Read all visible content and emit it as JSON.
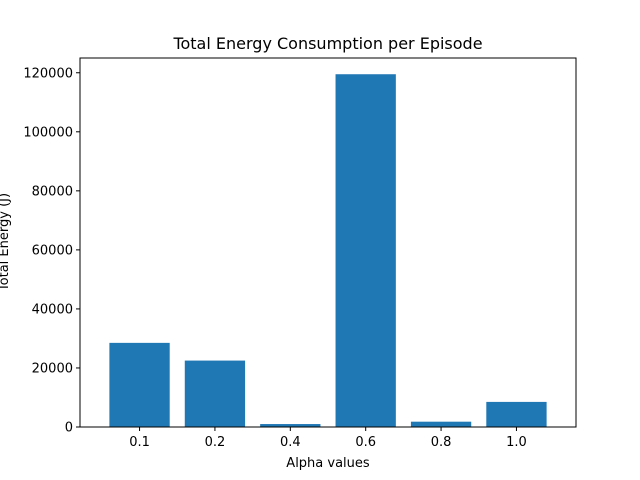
{
  "chart_data": {
    "type": "bar",
    "title": "Total Energy Consumption per Episode",
    "xlabel": "Alpha values",
    "ylabel": "Total Energy (J)",
    "categories": [
      "0.1",
      "0.2",
      "0.4",
      "0.6",
      "0.8",
      "1.0"
    ],
    "values": [
      28500,
      22500,
      1000,
      119500,
      1800,
      8500
    ],
    "ylim": [
      0,
      125000
    ],
    "yticks": [
      0,
      20000,
      40000,
      60000,
      80000,
      100000,
      120000
    ],
    "ytick_labels": [
      "0",
      "20000",
      "40000",
      "60000",
      "80000",
      "100000",
      "120000"
    ],
    "bar_color": "#1f77b4",
    "grid": false,
    "legend": "none"
  }
}
